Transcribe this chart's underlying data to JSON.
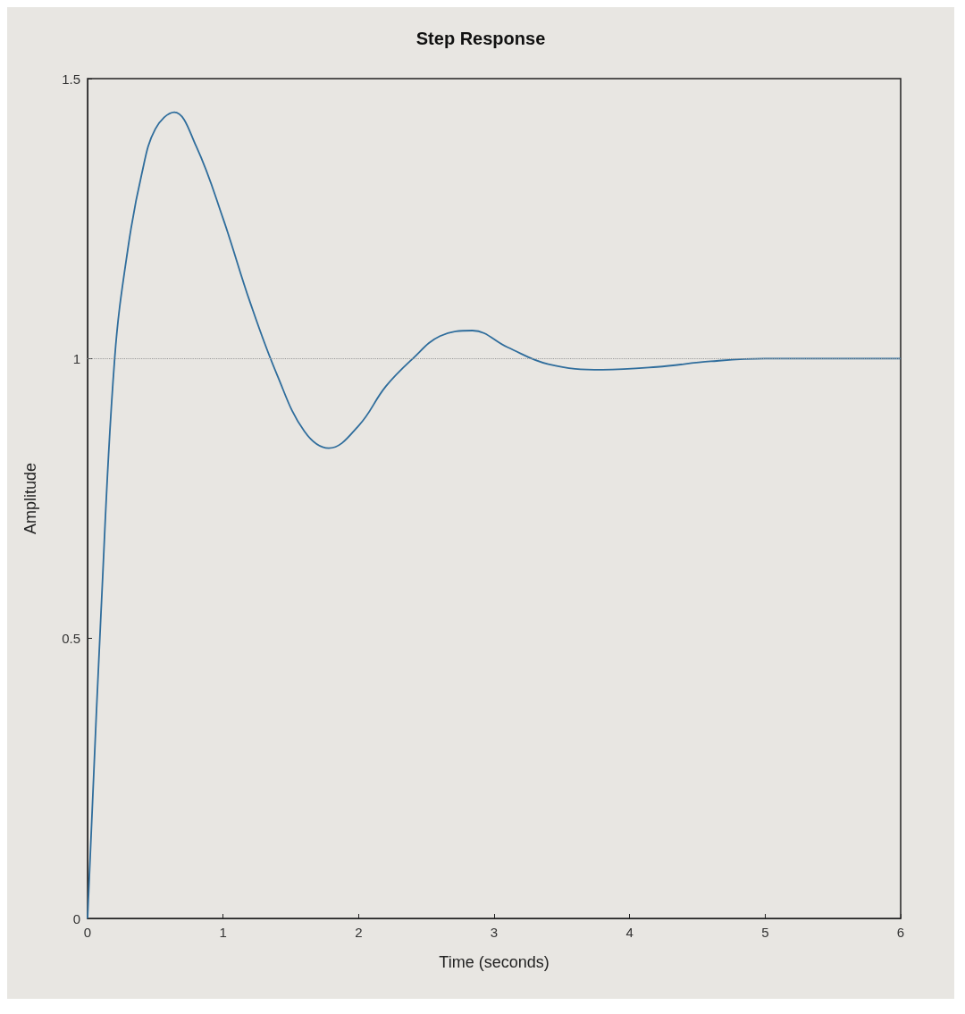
{
  "chart_data": {
    "type": "line",
    "title": "Step Response",
    "xlabel": "Time (seconds)",
    "ylabel": "Amplitude",
    "x": [
      0,
      0.1,
      0.2,
      0.3,
      0.4,
      0.5,
      0.64,
      0.8,
      1.0,
      1.2,
      1.4,
      1.6,
      1.78,
      2.0,
      2.2,
      2.4,
      2.6,
      2.84,
      3.1,
      3.4,
      3.8,
      4.2,
      4.6,
      5.0,
      5.5,
      6.0
    ],
    "series": [
      {
        "color": "#2f6d9c",
        "values": [
          0,
          0.55,
          1.0,
          1.2,
          1.33,
          1.41,
          1.44,
          1.38,
          1.25,
          1.1,
          0.97,
          0.87,
          0.84,
          0.88,
          0.95,
          1.0,
          1.04,
          1.05,
          1.02,
          0.99,
          0.98,
          0.985,
          0.995,
          1.0,
          1.0,
          1.0
        ]
      }
    ],
    "xlim": [
      0,
      6
    ],
    "xticks": [
      0,
      1,
      2,
      3,
      4,
      5,
      6
    ],
    "ylim": [
      0,
      1.5
    ],
    "yticks": [
      0,
      0.5,
      1,
      1.5
    ],
    "ref_lines": [
      {
        "axis": "y",
        "value": 1,
        "line_style": "dotted",
        "color": "#999999"
      }
    ],
    "grid": false,
    "marker": "none",
    "line_style": "solid"
  }
}
